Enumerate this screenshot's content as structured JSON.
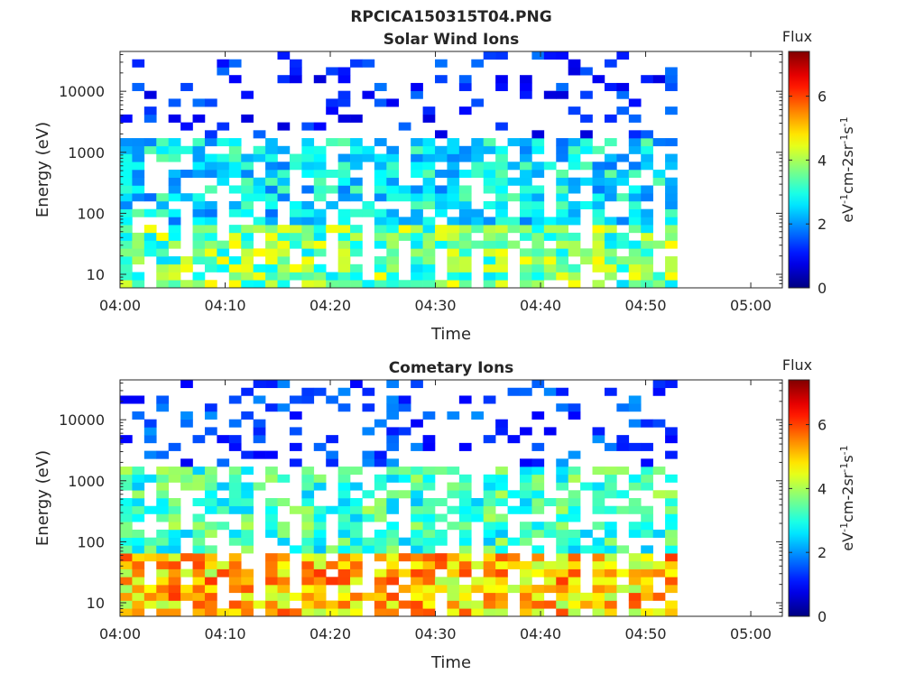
{
  "figure_title": "RPCICA150315T04.PNG",
  "chart_data": [
    {
      "type": "heatmap",
      "title": "Solar Wind Ions",
      "xlabel": "Time",
      "ylabel": "Energy (eV)",
      "x_ticks": [
        "04:00",
        "04:10",
        "04:20",
        "04:30",
        "04:40",
        "04:50",
        "05:00"
      ],
      "y_ticks": [
        "10",
        "100",
        "1000",
        "10000"
      ],
      "y_scale": "log",
      "ylim": [
        6,
        45000
      ],
      "xlim": [
        "04:00",
        "05:03"
      ],
      "data_end": "04:53",
      "colorbar": {
        "title": "Flux",
        "unit": "eV-1cm-2sr-1s-1",
        "ticks": [
          "0",
          "2",
          "4",
          "6"
        ],
        "range": [
          0,
          7.4
        ],
        "colormap": "jet"
      },
      "intensity": {
        "low_energy_level": 3.6,
        "mid_energy_level": 2.6,
        "high_energy_level": 1.0,
        "sparse_above_eV": 1500
      }
    },
    {
      "type": "heatmap",
      "title": "Cometary Ions",
      "xlabel": "Time",
      "ylabel": "Energy (eV)",
      "x_ticks": [
        "04:00",
        "04:10",
        "04:20",
        "04:30",
        "04:40",
        "04:50",
        "05:00"
      ],
      "y_ticks": [
        "10",
        "100",
        "1000",
        "10000"
      ],
      "y_scale": "log",
      "ylim": [
        6,
        45000
      ],
      "xlim": [
        "04:00",
        "05:03"
      ],
      "data_end": "04:53",
      "colorbar": {
        "title": "Flux",
        "unit": "eV-1cm-2sr-1s-1",
        "ticks": [
          "0",
          "2",
          "4",
          "6"
        ],
        "range": [
          0,
          7.4
        ],
        "colormap": "jet"
      },
      "intensity": {
        "low_energy_level": 5.0,
        "mid_energy_level": 3.2,
        "high_energy_level": 1.2,
        "sparse_above_eV": 1500
      }
    }
  ]
}
